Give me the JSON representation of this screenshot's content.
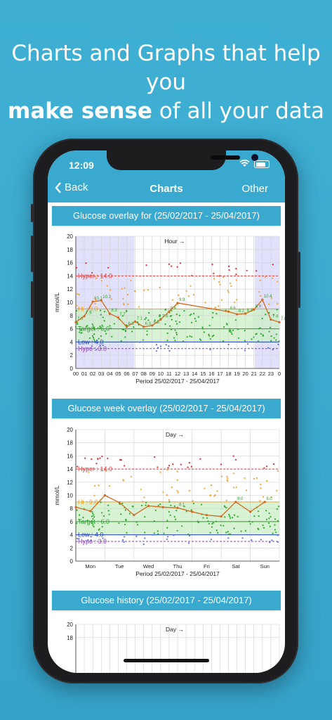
{
  "headline": {
    "line1": "Charts and Graphs that help you",
    "bold": "make sense",
    "rest": " of all your data"
  },
  "status": {
    "time": "12:09"
  },
  "nav": {
    "back_label": "Back",
    "title": "Charts",
    "other_label": "Other"
  },
  "colors": {
    "accent": "#3aa9cf",
    "hyper": "#e53935",
    "hi": "#f0a030",
    "target": "#2e9e2e",
    "low": "#1f3fbf",
    "hypo": "#8e3fbf",
    "trend": "#d2691e"
  },
  "sections": [
    {
      "title": "Glucose overlay for (25/02/2017 - 25/04/2017)"
    },
    {
      "title": "Glucose week overlay (25/02/2017 - 25/04/2017)"
    },
    {
      "title": "Glucose history (25/02/2017 - 25/04/2017)"
    }
  ],
  "chart_data": [
    {
      "type": "scatter",
      "axis_label_x": "Hour →",
      "xlabel": "Period 25/02/2017 - 25/04/2017",
      "ylabel": "mmol/L",
      "ylim": [
        0,
        20
      ],
      "yticks": [
        0,
        2,
        4,
        6,
        8,
        10,
        12,
        14,
        16,
        18,
        20
      ],
      "x_ticks": [
        "00",
        "01",
        "02",
        "03",
        "04",
        "05",
        "06",
        "07",
        "08",
        "09",
        "10",
        "11",
        "12",
        "13",
        "14",
        "15",
        "16",
        "17",
        "18",
        "19",
        "20",
        "21",
        "22",
        "23",
        "0"
      ],
      "thresholds": [
        {
          "label": "Hyper : 14.0",
          "value": 14.0,
          "color": "#e53935"
        },
        {
          "label": "Hi : 9.0",
          "value": 9.0,
          "color": "#f0a030"
        },
        {
          "label": "Target : 6.0",
          "value": 6.0,
          "color": "#2e9e2e"
        },
        {
          "label": "Low : 4.0",
          "value": 4.0,
          "color": "#1f3fbf"
        },
        {
          "label": "Hypo : 3.0",
          "value": 3.0,
          "color": "#8e3fbf"
        }
      ],
      "trend": {
        "x": [
          0,
          1,
          2,
          3,
          4,
          5,
          6,
          7,
          8,
          9,
          10,
          11,
          12,
          18,
          19,
          20,
          21,
          22,
          23,
          24
        ],
        "y": [
          7.0,
          7.9,
          10.1,
          10.3,
          8.3,
          7.7,
          6.3,
          7.1,
          6.3,
          6.5,
          7.4,
          8.6,
          9.9,
          8.6,
          8.2,
          8.3,
          8.9,
          10.4,
          7.4,
          7.0
        ],
        "labels": [
          "7.0",
          "7.9",
          "10.1",
          "10.3",
          "8.3",
          "7.7",
          "6.3",
          "7.1",
          "6.3",
          "6.5",
          "7.4",
          "8.6",
          "9.9",
          "8.6",
          "8.2",
          "8.3",
          "8.9",
          "10.4",
          "7.4",
          "7.0"
        ]
      }
    },
    {
      "type": "scatter",
      "axis_label_x": "Day →",
      "xlabel": "Period 25/02/2017 - 25/04/2017",
      "ylabel": "mmol/L",
      "ylim": [
        0,
        20
      ],
      "yticks": [
        0,
        2,
        4,
        6,
        8,
        10,
        12,
        14,
        16,
        18,
        20
      ],
      "x_ticks": [
        "Mon",
        "Tue",
        "Wed",
        "Thu",
        "Fri",
        "Sat",
        "Sun"
      ],
      "thresholds": [
        {
          "label": "Hyper : 14.0",
          "value": 14.0,
          "color": "#e53935"
        },
        {
          "label": "Hi : 9.0",
          "value": 9.0,
          "color": "#f0a030"
        },
        {
          "label": "Target : 6.0",
          "value": 6.0,
          "color": "#2e9e2e"
        },
        {
          "label": "Low : 4.0",
          "value": 4.0,
          "color": "#1f3fbf"
        },
        {
          "label": "Hypo : 3.0",
          "value": 3.0,
          "color": "#8e3fbf"
        }
      ],
      "trend": {
        "x": [
          0,
          0.5,
          1,
          1.5,
          2,
          2.5,
          3,
          3.5,
          4,
          4.5,
          5,
          5.5,
          6,
          6.5
        ],
        "y": [
          8.2,
          7.6,
          10.0,
          8.9,
          7.0,
          8.4,
          8.2,
          8.1,
          7.5,
          7.0,
          6.8,
          9.0,
          7.5,
          9.0
        ],
        "labels": [
          "",
          "",
          "",
          "",
          "",
          "",
          "",
          "8.1",
          "",
          "",
          "",
          "9.0",
          "",
          "9.0"
        ]
      }
    },
    {
      "type": "scatter",
      "axis_label_x": "Day →",
      "ylim": [
        0,
        20
      ],
      "yticks": [
        18,
        20
      ]
    }
  ]
}
